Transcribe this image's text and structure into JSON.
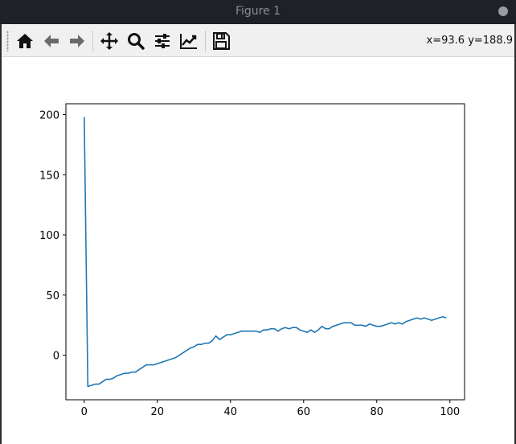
{
  "window": {
    "title": "Figure 1"
  },
  "toolbar": {
    "buttons": [
      {
        "name": "home",
        "icon": "home-icon"
      },
      {
        "name": "back",
        "icon": "arrow-left-icon"
      },
      {
        "name": "forward",
        "icon": "arrow-right-icon"
      },
      {
        "name": "pan",
        "icon": "move-icon"
      },
      {
        "name": "zoom",
        "icon": "magnifier-icon"
      },
      {
        "name": "subplots",
        "icon": "sliders-icon"
      },
      {
        "name": "axes",
        "icon": "chart-line-icon"
      },
      {
        "name": "save",
        "icon": "floppy-disk-icon"
      }
    ],
    "coords": "x=93.6 y=188.9"
  },
  "colors": {
    "line": "#1f77b4",
    "titlebar": "#202028",
    "toolbar": "#f0f0f0"
  },
  "chart_data": {
    "type": "line",
    "title": "",
    "xlabel": "",
    "ylabel": "",
    "xlim": [
      -5,
      104
    ],
    "ylim": [
      -37,
      209
    ],
    "xticks": [
      0,
      20,
      40,
      60,
      80,
      100
    ],
    "yticks": [
      0,
      50,
      100,
      150,
      200
    ],
    "grid": false,
    "series": [
      {
        "color": "#1f77b4",
        "x": [
          0,
          1,
          2,
          3,
          4,
          5,
          6,
          7,
          8,
          9,
          10,
          11,
          12,
          13,
          14,
          15,
          16,
          17,
          18,
          19,
          20,
          21,
          22,
          23,
          24,
          25,
          26,
          27,
          28,
          29,
          30,
          31,
          32,
          33,
          34,
          35,
          36,
          37,
          38,
          39,
          40,
          41,
          42,
          43,
          44,
          45,
          46,
          47,
          48,
          49,
          50,
          51,
          52,
          53,
          54,
          55,
          56,
          57,
          58,
          59,
          60,
          61,
          62,
          63,
          64,
          65,
          66,
          67,
          68,
          69,
          70,
          71,
          72,
          73,
          74,
          75,
          76,
          77,
          78,
          79,
          80,
          81,
          82,
          83,
          84,
          85,
          86,
          87,
          88,
          89,
          90,
          91,
          92,
          93,
          94,
          95,
          96,
          97,
          98,
          99
        ],
        "values": [
          198,
          -26,
          -25,
          -24,
          -24,
          -22,
          -20,
          -20,
          -19,
          -17,
          -16,
          -15,
          -15,
          -14,
          -14,
          -12,
          -10,
          -8,
          -8,
          -8,
          -7,
          -6,
          -5,
          -4,
          -3,
          -2,
          0,
          2,
          4,
          6,
          7,
          9,
          9,
          10,
          10,
          12,
          16,
          13,
          15,
          17,
          17,
          18,
          19,
          20,
          20,
          20,
          20,
          20,
          19,
          21,
          21,
          22,
          22,
          20,
          22,
          23,
          22,
          23,
          23,
          21,
          20,
          19,
          21,
          19,
          21,
          24,
          22,
          22,
          24,
          25,
          26,
          27,
          27,
          27,
          25,
          25,
          25,
          24,
          26,
          25,
          24,
          24,
          25,
          26,
          27,
          26,
          27,
          26,
          28,
          29,
          30,
          31,
          30,
          31,
          30,
          29,
          30,
          31,
          32,
          31
        ]
      }
    ]
  }
}
